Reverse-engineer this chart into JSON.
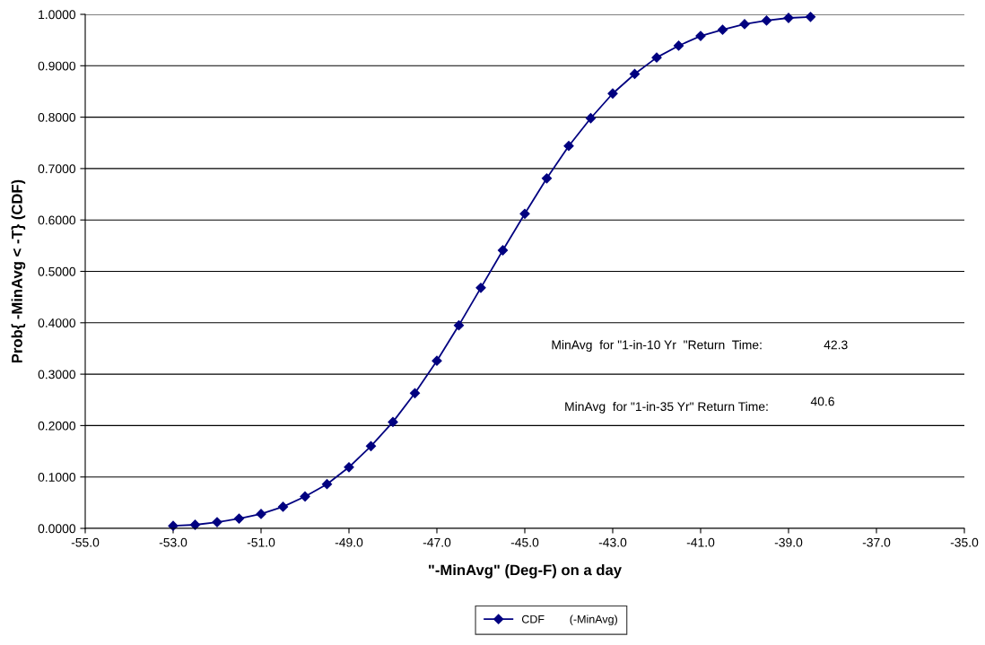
{
  "chart_data": {
    "type": "line",
    "xlabel": "\"-MinAvg\" (Deg-F) on a day",
    "ylabel": "Prob{ -MinAvg < -T} (CDF)",
    "x": [
      -53.0,
      -52.5,
      -52.0,
      -51.5,
      -51.0,
      -50.5,
      -50.0,
      -49.5,
      -49.0,
      -48.5,
      -48.0,
      -47.5,
      -47.0,
      -46.5,
      -46.0,
      -45.5,
      -45.0,
      -44.5,
      -44.0,
      -43.5,
      -43.0,
      -42.5,
      -42.0,
      -41.5,
      -41.0,
      -40.5,
      -40.0,
      -39.5,
      -39.0,
      -38.5
    ],
    "series": [
      {
        "name": "CDF        (-MinAvg)",
        "color": "#000080",
        "values": [
          0.005,
          0.007,
          0.012,
          0.019,
          0.028,
          0.042,
          0.062,
          0.086,
          0.119,
          0.16,
          0.207,
          0.263,
          0.326,
          0.395,
          0.468,
          0.541,
          0.612,
          0.681,
          0.744,
          0.798,
          0.846,
          0.884,
          0.916,
          0.939,
          0.958,
          0.97,
          0.981,
          0.988,
          0.993,
          0.995
        ]
      }
    ],
    "xlim": [
      -55.0,
      -35.0
    ],
    "xticks": [
      {
        "value": -55,
        "label": "-55.0"
      },
      {
        "value": -53,
        "label": "-53.0"
      },
      {
        "value": -51,
        "label": "-51.0"
      },
      {
        "value": -49,
        "label": "-49.0"
      },
      {
        "value": -47,
        "label": "-47.0"
      },
      {
        "value": -45,
        "label": "-45.0"
      },
      {
        "value": -43,
        "label": "-43.0"
      },
      {
        "value": -41,
        "label": "-41.0"
      },
      {
        "value": -39,
        "label": "-39.0"
      },
      {
        "value": -37,
        "label": "-37.0"
      },
      {
        "value": -35,
        "label": "-35.0"
      }
    ],
    "ylim": [
      0,
      1
    ],
    "yticks": [
      {
        "value": 0,
        "label": "0.0000"
      },
      {
        "value": 0.1,
        "label": "0.1000"
      },
      {
        "value": 0.2,
        "label": "0.2000"
      },
      {
        "value": 0.3,
        "label": "0.3000"
      },
      {
        "value": 0.4,
        "label": "0.4000"
      },
      {
        "value": 0.5,
        "label": "0.5000"
      },
      {
        "value": 0.6,
        "label": "0.6000"
      },
      {
        "value": 0.7,
        "label": "0.7000"
      },
      {
        "value": 0.8,
        "label": "0.8000"
      },
      {
        "value": 0.9,
        "label": "0.9000"
      },
      {
        "value": 1.0,
        "label": "1.0000"
      }
    ],
    "annotations": [
      "MinAvg  for \"1-in-10 Yr  \"Return  Time:",
      "42.3",
      "MinAvg  for \"1-in-35 Yr\" Return Time:",
      "40.6"
    ],
    "grid": "y",
    "legend": "bottom",
    "marker": "diamond",
    "line_style": "solid"
  }
}
